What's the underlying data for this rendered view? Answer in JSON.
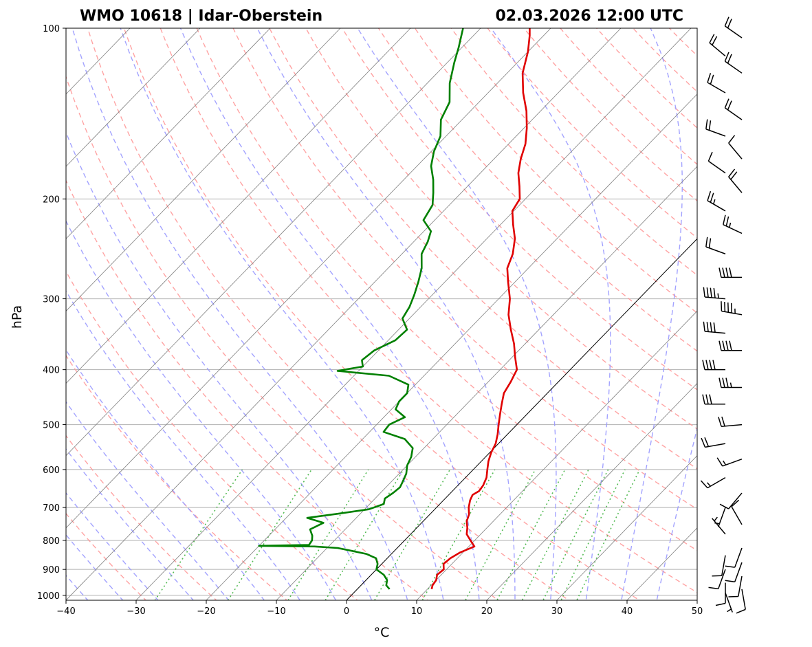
{
  "title": {
    "left": "WMO 10618 | Idar-Oberstein",
    "right": "02.03.2026 12:00 UTC"
  },
  "chart_data": {
    "type": "line",
    "subtype": "skew-T log-p sounding",
    "xlabel": "°C",
    "ylabel": "hPa",
    "xlim": [
      -40,
      50
    ],
    "ylim": [
      1020,
      100
    ],
    "y_scale": "log",
    "x_ticks": [
      -40,
      -30,
      -20,
      -10,
      0,
      10,
      20,
      30,
      40,
      50
    ],
    "x_tick_labels": [
      "−40",
      "−30",
      "−20",
      "−10",
      "0",
      "10",
      "20",
      "30",
      "40",
      "50"
    ],
    "y_ticks": [
      100,
      200,
      300,
      400,
      500,
      600,
      700,
      800,
      900,
      1000
    ],
    "y_tick_labels": [
      "100",
      "200",
      "300",
      "400",
      "500",
      "600",
      "700",
      "800",
      "900",
      "1000"
    ],
    "grid": true,
    "background_lines": {
      "isotherms_color": "#808080",
      "dry_adiabats_color": "#ff9999",
      "moist_adiabats_color": "#9999ff",
      "mixing_ratio_color": "#55bb55",
      "zero_isotherm_color": "#000000"
    },
    "series": [
      {
        "color": "#e00000",
        "kind": "temperature",
        "points": [
          [
            975,
            10.6
          ],
          [
            960,
            10.2
          ],
          [
            940,
            10.0
          ],
          [
            920,
            9.4
          ],
          [
            900,
            9.6
          ],
          [
            880,
            8.8
          ],
          [
            860,
            9.0
          ],
          [
            840,
            9.6
          ],
          [
            820,
            10.8
          ],
          [
            800,
            9.4
          ],
          [
            780,
            8.0
          ],
          [
            760,
            7.2
          ],
          [
            740,
            6.2
          ],
          [
            720,
            5.6
          ],
          [
            700,
            4.6
          ],
          [
            680,
            3.8
          ],
          [
            665,
            3.4
          ],
          [
            655,
            3.8
          ],
          [
            640,
            3.6
          ],
          [
            620,
            3.0
          ],
          [
            600,
            2.0
          ],
          [
            580,
            1.0
          ],
          [
            560,
            0.2
          ],
          [
            540,
            -0.4
          ],
          [
            520,
            -1.4
          ],
          [
            500,
            -2.6
          ],
          [
            480,
            -3.8
          ],
          [
            460,
            -5.0
          ],
          [
            440,
            -6.2
          ],
          [
            420,
            -6.8
          ],
          [
            400,
            -7.6
          ],
          [
            380,
            -9.6
          ],
          [
            360,
            -11.6
          ],
          [
            340,
            -14.0
          ],
          [
            320,
            -16.4
          ],
          [
            300,
            -18.4
          ],
          [
            280,
            -21.0
          ],
          [
            265,
            -23.0
          ],
          [
            250,
            -24.2
          ],
          [
            235,
            -26.0
          ],
          [
            222,
            -28.2
          ],
          [
            210,
            -30.2
          ],
          [
            200,
            -30.8
          ],
          [
            190,
            -32.6
          ],
          [
            180,
            -34.6
          ],
          [
            170,
            -36.2
          ],
          [
            160,
            -37.6
          ],
          [
            150,
            -39.6
          ],
          [
            140,
            -42.0
          ],
          [
            130,
            -45.0
          ],
          [
            120,
            -47.8
          ],
          [
            110,
            -50.0
          ],
          [
            103,
            -52.0
          ],
          [
            100,
            -53.0
          ]
        ]
      },
      {
        "color": "#008000",
        "kind": "dewpoint",
        "points": [
          [
            975,
            4.6
          ],
          [
            960,
            3.6
          ],
          [
            940,
            3.0
          ],
          [
            920,
            1.8
          ],
          [
            900,
            0.0
          ],
          [
            880,
            -0.6
          ],
          [
            860,
            -1.6
          ],
          [
            845,
            -3.6
          ],
          [
            835,
            -6.0
          ],
          [
            825,
            -8.5
          ],
          [
            820,
            -12.0
          ],
          [
            818,
            -20.0
          ],
          [
            815,
            -13.0
          ],
          [
            800,
            -13.2
          ],
          [
            785,
            -13.8
          ],
          [
            765,
            -15.0
          ],
          [
            745,
            -14.0
          ],
          [
            730,
            -17.0
          ],
          [
            718,
            -13.2
          ],
          [
            705,
            -9.4
          ],
          [
            690,
            -8.0
          ],
          [
            675,
            -8.6
          ],
          [
            660,
            -8.2
          ],
          [
            645,
            -8.0
          ],
          [
            630,
            -8.4
          ],
          [
            610,
            -9.0
          ],
          [
            590,
            -10.0
          ],
          [
            570,
            -10.6
          ],
          [
            550,
            -11.6
          ],
          [
            530,
            -14.0
          ],
          [
            515,
            -18.0
          ],
          [
            500,
            -18.2
          ],
          [
            485,
            -17.0
          ],
          [
            470,
            -19.4
          ],
          [
            455,
            -20.0
          ],
          [
            440,
            -20.0
          ],
          [
            425,
            -21.0
          ],
          [
            410,
            -25.0
          ],
          [
            402,
            -33.0
          ],
          [
            395,
            -30.0
          ],
          [
            385,
            -31.0
          ],
          [
            370,
            -30.6
          ],
          [
            355,
            -29.0
          ],
          [
            340,
            -28.8
          ],
          [
            325,
            -31.0
          ],
          [
            310,
            -31.6
          ],
          [
            295,
            -32.6
          ],
          [
            280,
            -33.8
          ],
          [
            265,
            -35.2
          ],
          [
            250,
            -37.2
          ],
          [
            238,
            -38.0
          ],
          [
            228,
            -39.0
          ],
          [
            218,
            -41.6
          ],
          [
            205,
            -42.4
          ],
          [
            195,
            -44.0
          ],
          [
            185,
            -45.8
          ],
          [
            175,
            -48.0
          ],
          [
            165,
            -49.6
          ],
          [
            155,
            -50.8
          ],
          [
            145,
            -53.0
          ],
          [
            135,
            -54.2
          ],
          [
            125,
            -56.8
          ],
          [
            115,
            -59.0
          ],
          [
            108,
            -60.5
          ],
          [
            100,
            -62.5
          ]
        ]
      }
    ],
    "wind_barbs": {
      "color": "#000000",
      "units": "kt",
      "levels": [
        {
          "p": 990,
          "dir": 160,
          "spd": 5
        },
        {
          "p": 975,
          "dir": 170,
          "spd": 10
        },
        {
          "p": 950,
          "dir": 180,
          "spd": 10
        },
        {
          "p": 925,
          "dir": 190,
          "spd": 10
        },
        {
          "p": 900,
          "dir": 200,
          "spd": 10
        },
        {
          "p": 875,
          "dir": 200,
          "spd": 10
        },
        {
          "p": 850,
          "dir": 190,
          "spd": 10
        },
        {
          "p": 825,
          "dir": 200,
          "spd": 10
        },
        {
          "p": 780,
          "dir": 320,
          "spd": 5
        },
        {
          "p": 750,
          "dir": 330,
          "spd": 10
        },
        {
          "p": 700,
          "dir": 200,
          "spd": 5
        },
        {
          "p": 660,
          "dir": 220,
          "spd": 10
        },
        {
          "p": 620,
          "dir": 240,
          "spd": 15
        },
        {
          "p": 575,
          "dir": 250,
          "spd": 15
        },
        {
          "p": 540,
          "dir": 260,
          "spd": 20
        },
        {
          "p": 500,
          "dir": 265,
          "spd": 20
        },
        {
          "p": 460,
          "dir": 270,
          "spd": 30
        },
        {
          "p": 430,
          "dir": 270,
          "spd": 35
        },
        {
          "p": 400,
          "dir": 270,
          "spd": 40
        },
        {
          "p": 370,
          "dir": 270,
          "spd": 40
        },
        {
          "p": 345,
          "dir": 275,
          "spd": 40
        },
        {
          "p": 320,
          "dir": 280,
          "spd": 45
        },
        {
          "p": 300,
          "dir": 275,
          "spd": 45
        },
        {
          "p": 275,
          "dir": 270,
          "spd": 40
        },
        {
          "p": 250,
          "dir": 290,
          "spd": 20
        },
        {
          "p": 230,
          "dir": 295,
          "spd": 25
        },
        {
          "p": 210,
          "dir": 300,
          "spd": 25
        },
        {
          "p": 195,
          "dir": 320,
          "spd": 20
        },
        {
          "p": 180,
          "dir": 305,
          "spd": 10
        },
        {
          "p": 170,
          "dir": 320,
          "spd": 10
        },
        {
          "p": 155,
          "dir": 290,
          "spd": 20
        },
        {
          "p": 145,
          "dir": 305,
          "spd": 20
        },
        {
          "p": 130,
          "dir": 300,
          "spd": 20
        },
        {
          "p": 120,
          "dir": 305,
          "spd": 20
        },
        {
          "p": 112,
          "dir": 310,
          "spd": 20
        },
        {
          "p": 104,
          "dir": 305,
          "spd": 20
        }
      ]
    }
  }
}
